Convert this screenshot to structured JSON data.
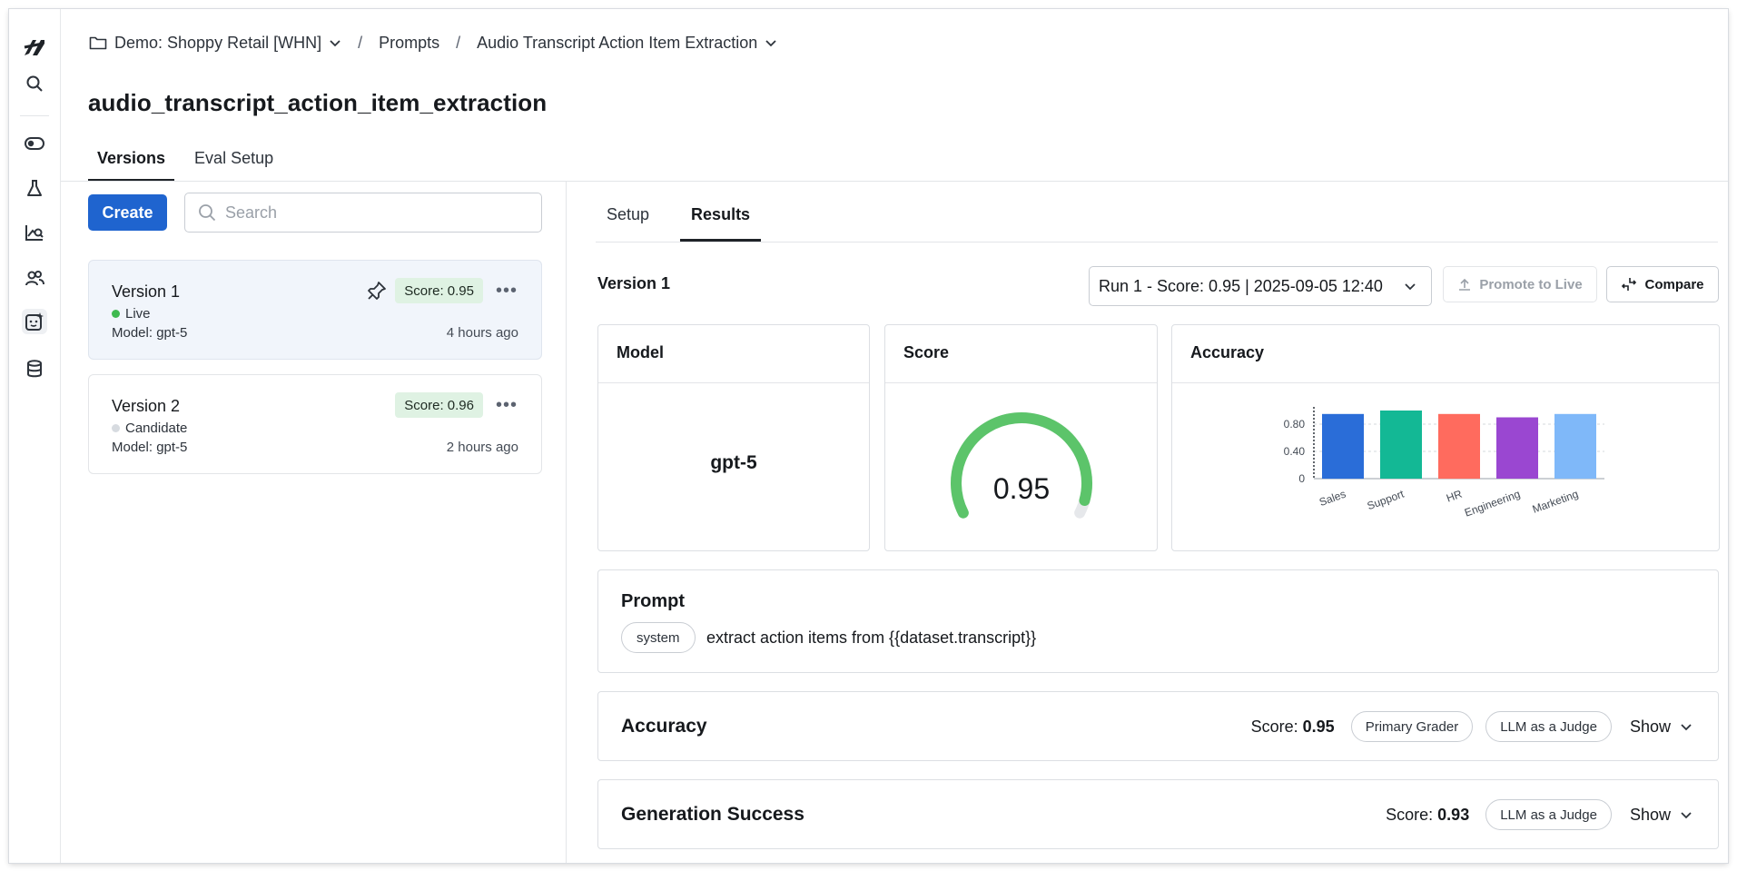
{
  "breadcrumb": {
    "project": "Demo: Shoppy Retail [WHN]",
    "section": "Prompts",
    "prompt": "Audio Transcript Action Item Extraction",
    "separator": "/"
  },
  "page_title": "audio_transcript_action_item_extraction",
  "top_tabs": [
    {
      "label": "Versions",
      "active": true
    },
    {
      "label": "Eval Setup",
      "active": false
    }
  ],
  "left": {
    "create_label": "Create",
    "search_placeholder": "Search",
    "versions": [
      {
        "name": "Version 1",
        "status": "Live",
        "status_color": "#3fb950",
        "score": "Score: 0.95",
        "model": "Model: gpt-5",
        "time": "4 hours ago",
        "pinned": true,
        "selected": true
      },
      {
        "name": "Version 2",
        "status": "Candidate",
        "status_color": "#d7dbe0",
        "score": "Score: 0.96",
        "model": "Model: gpt-5",
        "time": "2 hours ago",
        "pinned": false,
        "selected": false
      }
    ]
  },
  "right": {
    "tabs": [
      {
        "label": "Setup",
        "active": false
      },
      {
        "label": "Results",
        "active": true
      }
    ],
    "version_label": "Version 1",
    "run_select": "Run 1 - Score: 0.95 | 2025-09-05 12:40",
    "promote_label": "Promote to Live",
    "compare_label": "Compare",
    "model_card": {
      "title": "Model",
      "value": "gpt-5"
    },
    "score_card": {
      "title": "Score",
      "value": "0.95",
      "fraction": 0.95,
      "color": "#5cc46a"
    },
    "accuracy_card": {
      "title": "Accuracy"
    },
    "prompt": {
      "title": "Prompt",
      "role": "system",
      "text": "extract action items from {{dataset.transcript}}"
    },
    "graders": [
      {
        "title": "Accuracy",
        "score_prefix": "Score:",
        "score": "0.95",
        "tags": [
          "Primary Grader",
          "LLM as a Judge"
        ],
        "show_label": "Show"
      },
      {
        "title": "Generation Success",
        "score_prefix": "Score:",
        "score": "0.93",
        "tags": [
          "LLM as a Judge"
        ],
        "show_label": "Show"
      }
    ]
  },
  "chart_data": {
    "type": "bar",
    "title": "",
    "categories": [
      "Sales",
      "Support",
      "HR",
      "Engineering",
      "Marketing"
    ],
    "values": [
      0.95,
      1.0,
      0.95,
      0.9,
      0.95
    ],
    "colors": [
      "#2a6dd8",
      "#13b895",
      "#ff6b5e",
      "#9a47d1",
      "#7fb8f9"
    ],
    "yticks": [
      "0",
      "0.40",
      "0.80"
    ],
    "ylim": [
      0,
      1.0
    ],
    "grid": true
  }
}
